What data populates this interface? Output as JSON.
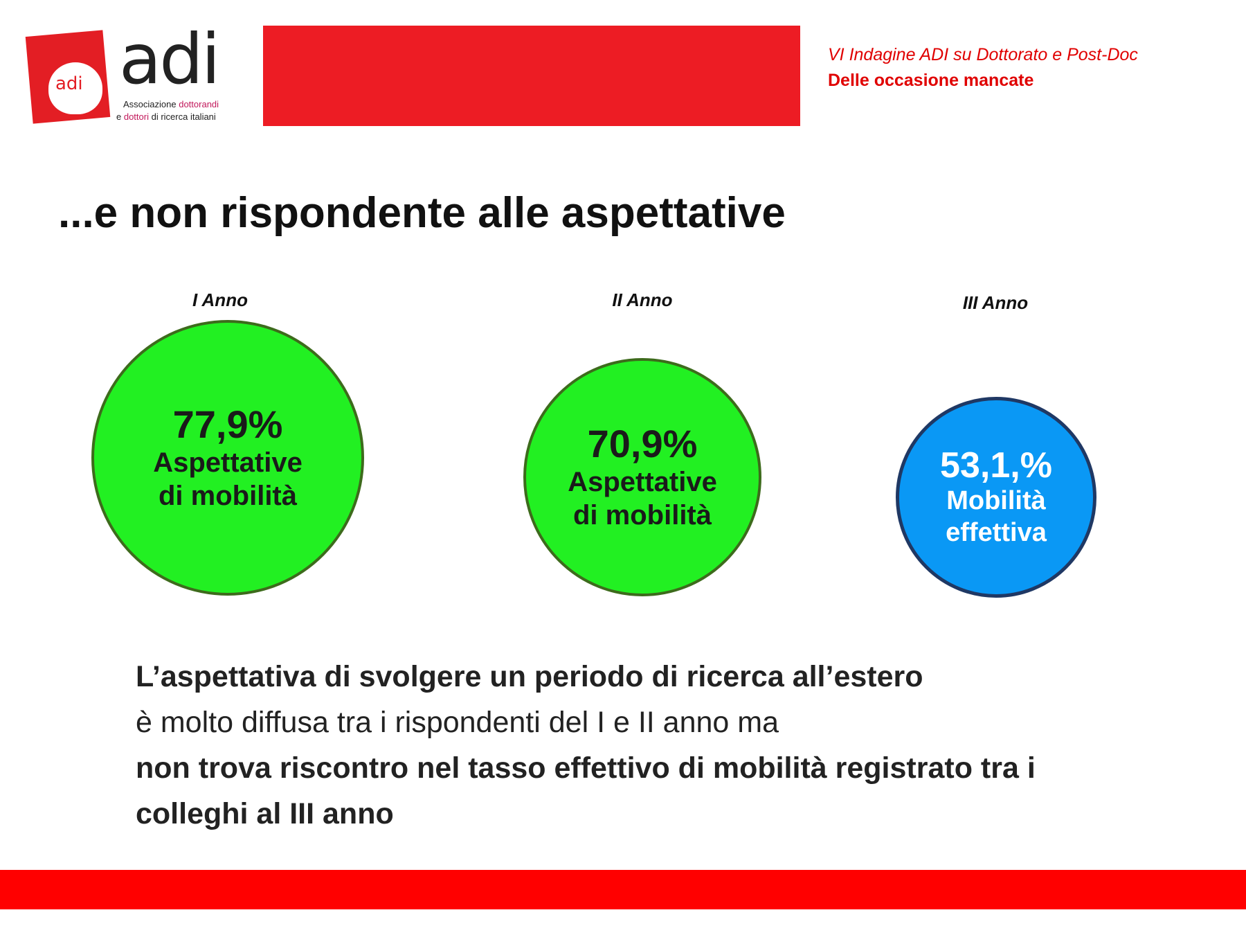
{
  "logo": {
    "apple_text": "adi",
    "word": "adi",
    "sub_line1_a": "Associazione ",
    "sub_line1_b": "dottorandi",
    "sub_line2_a": "e ",
    "sub_line2_b": "dottori",
    "sub_line2_c": " di ricerca italiani"
  },
  "header": {
    "survey": "VI Indagine ADI su Dottorato e Post-Doc",
    "subtitle": "Delle occasione mancate",
    "accent_color": "#ed1c24"
  },
  "title": "...e non rispondente alle aspettative",
  "years": [
    {
      "label": "I Anno",
      "value": "77,9%",
      "caption1": "Aspettative",
      "caption2": "di mobilità",
      "color": "#22f022"
    },
    {
      "label": "II Anno",
      "value": "70,9%",
      "caption1": "Aspettative",
      "caption2": "di mobilità",
      "color": "#22f022"
    },
    {
      "label": "III Anno",
      "value": "53,1,%",
      "caption1": "Mobilità",
      "caption2": "effettiva",
      "color": "#0a98f5"
    }
  ],
  "body": {
    "p1_bold": "L’aspettativa di svolgere un periodo di ricerca all’estero",
    "p2": " è molto diffusa tra i rispondenti del I e II anno ma ",
    "p3_bold": "non trova riscontro nel tasso effettivo di mobilità registrato tra i colleghi al III anno"
  }
}
